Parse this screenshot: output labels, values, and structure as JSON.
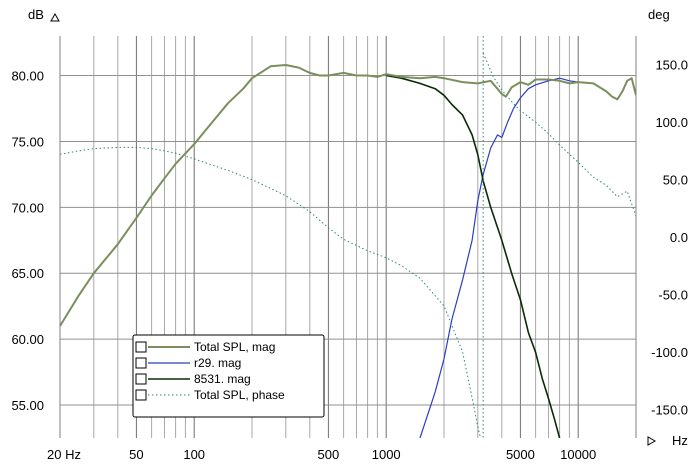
{
  "chart_data": {
    "type": "line",
    "units": {
      "left": "dB",
      "right": "deg",
      "x": "Hz"
    },
    "x_ticks": [
      "20 Hz",
      "50",
      "100",
      "500",
      "1000",
      "5000",
      "10000"
    ],
    "x_tick_values": [
      20,
      50,
      100,
      500,
      1000,
      5000,
      10000
    ],
    "y_left_ticks": [
      "80.00",
      "75.00",
      "70.00",
      "65.00",
      "60.00",
      "55.00"
    ],
    "y_left_tick_values": [
      80,
      75,
      70,
      65,
      60,
      55
    ],
    "y_right_ticks": [
      "150.0",
      "100.0",
      "50.0",
      "0.0",
      "-50.0",
      "-100.0",
      "-150.0"
    ],
    "y_right_tick_values": [
      150,
      100,
      50,
      0,
      -50,
      -100,
      -150
    ],
    "xlim": [
      20,
      20000
    ],
    "ylim_left": [
      52.5,
      83.0
    ],
    "ylim_right": [
      -175,
      175
    ],
    "x_scale": "log",
    "grid": true,
    "legend_position": "bottom-left",
    "colors": {
      "total_spl_mag": "#7b8f5e",
      "r29_mag": "#2a3fc4",
      "mag_8531": "#0b2b08",
      "total_spl_phase": "#2e8a6e",
      "grid": "#a0a0a0",
      "frame": "#808080"
    },
    "series": [
      {
        "name": "Total SPL, mag",
        "axis": "left",
        "style": "solid",
        "x": [
          20,
          25,
          30,
          40,
          50,
          60,
          70,
          80,
          100,
          120,
          150,
          180,
          200,
          250,
          300,
          350,
          400,
          450,
          500,
          600,
          700,
          800,
          900,
          1000,
          1200,
          1500,
          1800,
          2000,
          2500,
          3000,
          3500,
          4000,
          4200,
          4500,
          5000,
          5500,
          6000,
          7000,
          8000,
          9000,
          10000,
          12000,
          14000,
          15000,
          16000,
          17000,
          18000,
          19000,
          20000
        ],
        "values": [
          61.0,
          63.3,
          65.0,
          67.2,
          69.2,
          70.9,
          72.2,
          73.3,
          74.8,
          76.2,
          77.9,
          79.0,
          79.8,
          80.7,
          80.8,
          80.6,
          80.2,
          80.0,
          80.0,
          80.2,
          80.0,
          80.0,
          79.9,
          80.1,
          79.9,
          79.8,
          79.9,
          79.8,
          79.5,
          79.4,
          79.6,
          78.6,
          78.4,
          79.1,
          79.5,
          79.3,
          79.7,
          79.7,
          79.6,
          79.4,
          79.5,
          79.4,
          78.8,
          78.4,
          78.2,
          78.8,
          79.6,
          79.8,
          78.5
        ]
      },
      {
        "name": "r29. mag",
        "axis": "left",
        "style": "solid",
        "x": [
          1500,
          1800,
          2000,
          2200,
          2500,
          2800,
          3000,
          3200,
          3500,
          3800,
          4000,
          4300,
          4600,
          5000,
          5500,
          6000,
          7000,
          8000,
          9000,
          10000
        ],
        "values": [
          52.5,
          56.0,
          58.5,
          61.5,
          64.5,
          67.5,
          70.5,
          72.5,
          74.5,
          75.5,
          75.3,
          76.5,
          77.5,
          78.3,
          79.0,
          79.3,
          79.6,
          79.8,
          79.6,
          79.5
        ]
      },
      {
        "name": "8531. mag",
        "axis": "left",
        "style": "solid",
        "x": [
          1000,
          1200,
          1500,
          1800,
          2000,
          2200,
          2500,
          2800,
          3000,
          3200,
          3500,
          4000,
          4500,
          5000,
          5500,
          6000,
          6500,
          7000,
          7500,
          8000
        ],
        "values": [
          80.0,
          79.8,
          79.4,
          79.0,
          78.5,
          77.8,
          77.0,
          75.5,
          74.0,
          72.0,
          70.0,
          67.5,
          65.0,
          63.0,
          60.5,
          59.0,
          57.0,
          55.5,
          54.0,
          52.5
        ]
      },
      {
        "name": "Total SPL, phase",
        "axis": "right",
        "style": "dotted",
        "x": [
          20,
          25,
          30,
          40,
          50,
          60,
          70,
          80,
          100,
          150,
          200,
          300,
          400,
          500,
          600,
          800,
          1000,
          1200,
          1500,
          2000,
          2500,
          2800,
          3000,
          3100,
          3200,
          3400,
          3600,
          4000,
          4500,
          5000,
          6000,
          7000,
          8000,
          10000,
          12000,
          14000,
          16000,
          18000,
          20000
        ],
        "values": [
          72,
          75,
          77,
          78,
          78,
          77,
          75,
          73,
          68,
          58,
          50,
          36,
          22,
          8,
          -2,
          -12,
          -18,
          -25,
          -36,
          -60,
          -100,
          -140,
          -165,
          -175,
          160,
          150,
          140,
          128,
          118,
          110,
          100,
          90,
          80,
          65,
          52,
          45,
          35,
          40,
          18
        ]
      }
    ],
    "legend": [
      {
        "label": "Total SPL, mag"
      },
      {
        "label": "r29. mag"
      },
      {
        "label": "8531. mag"
      },
      {
        "label": "Total SPL, phase"
      }
    ]
  }
}
